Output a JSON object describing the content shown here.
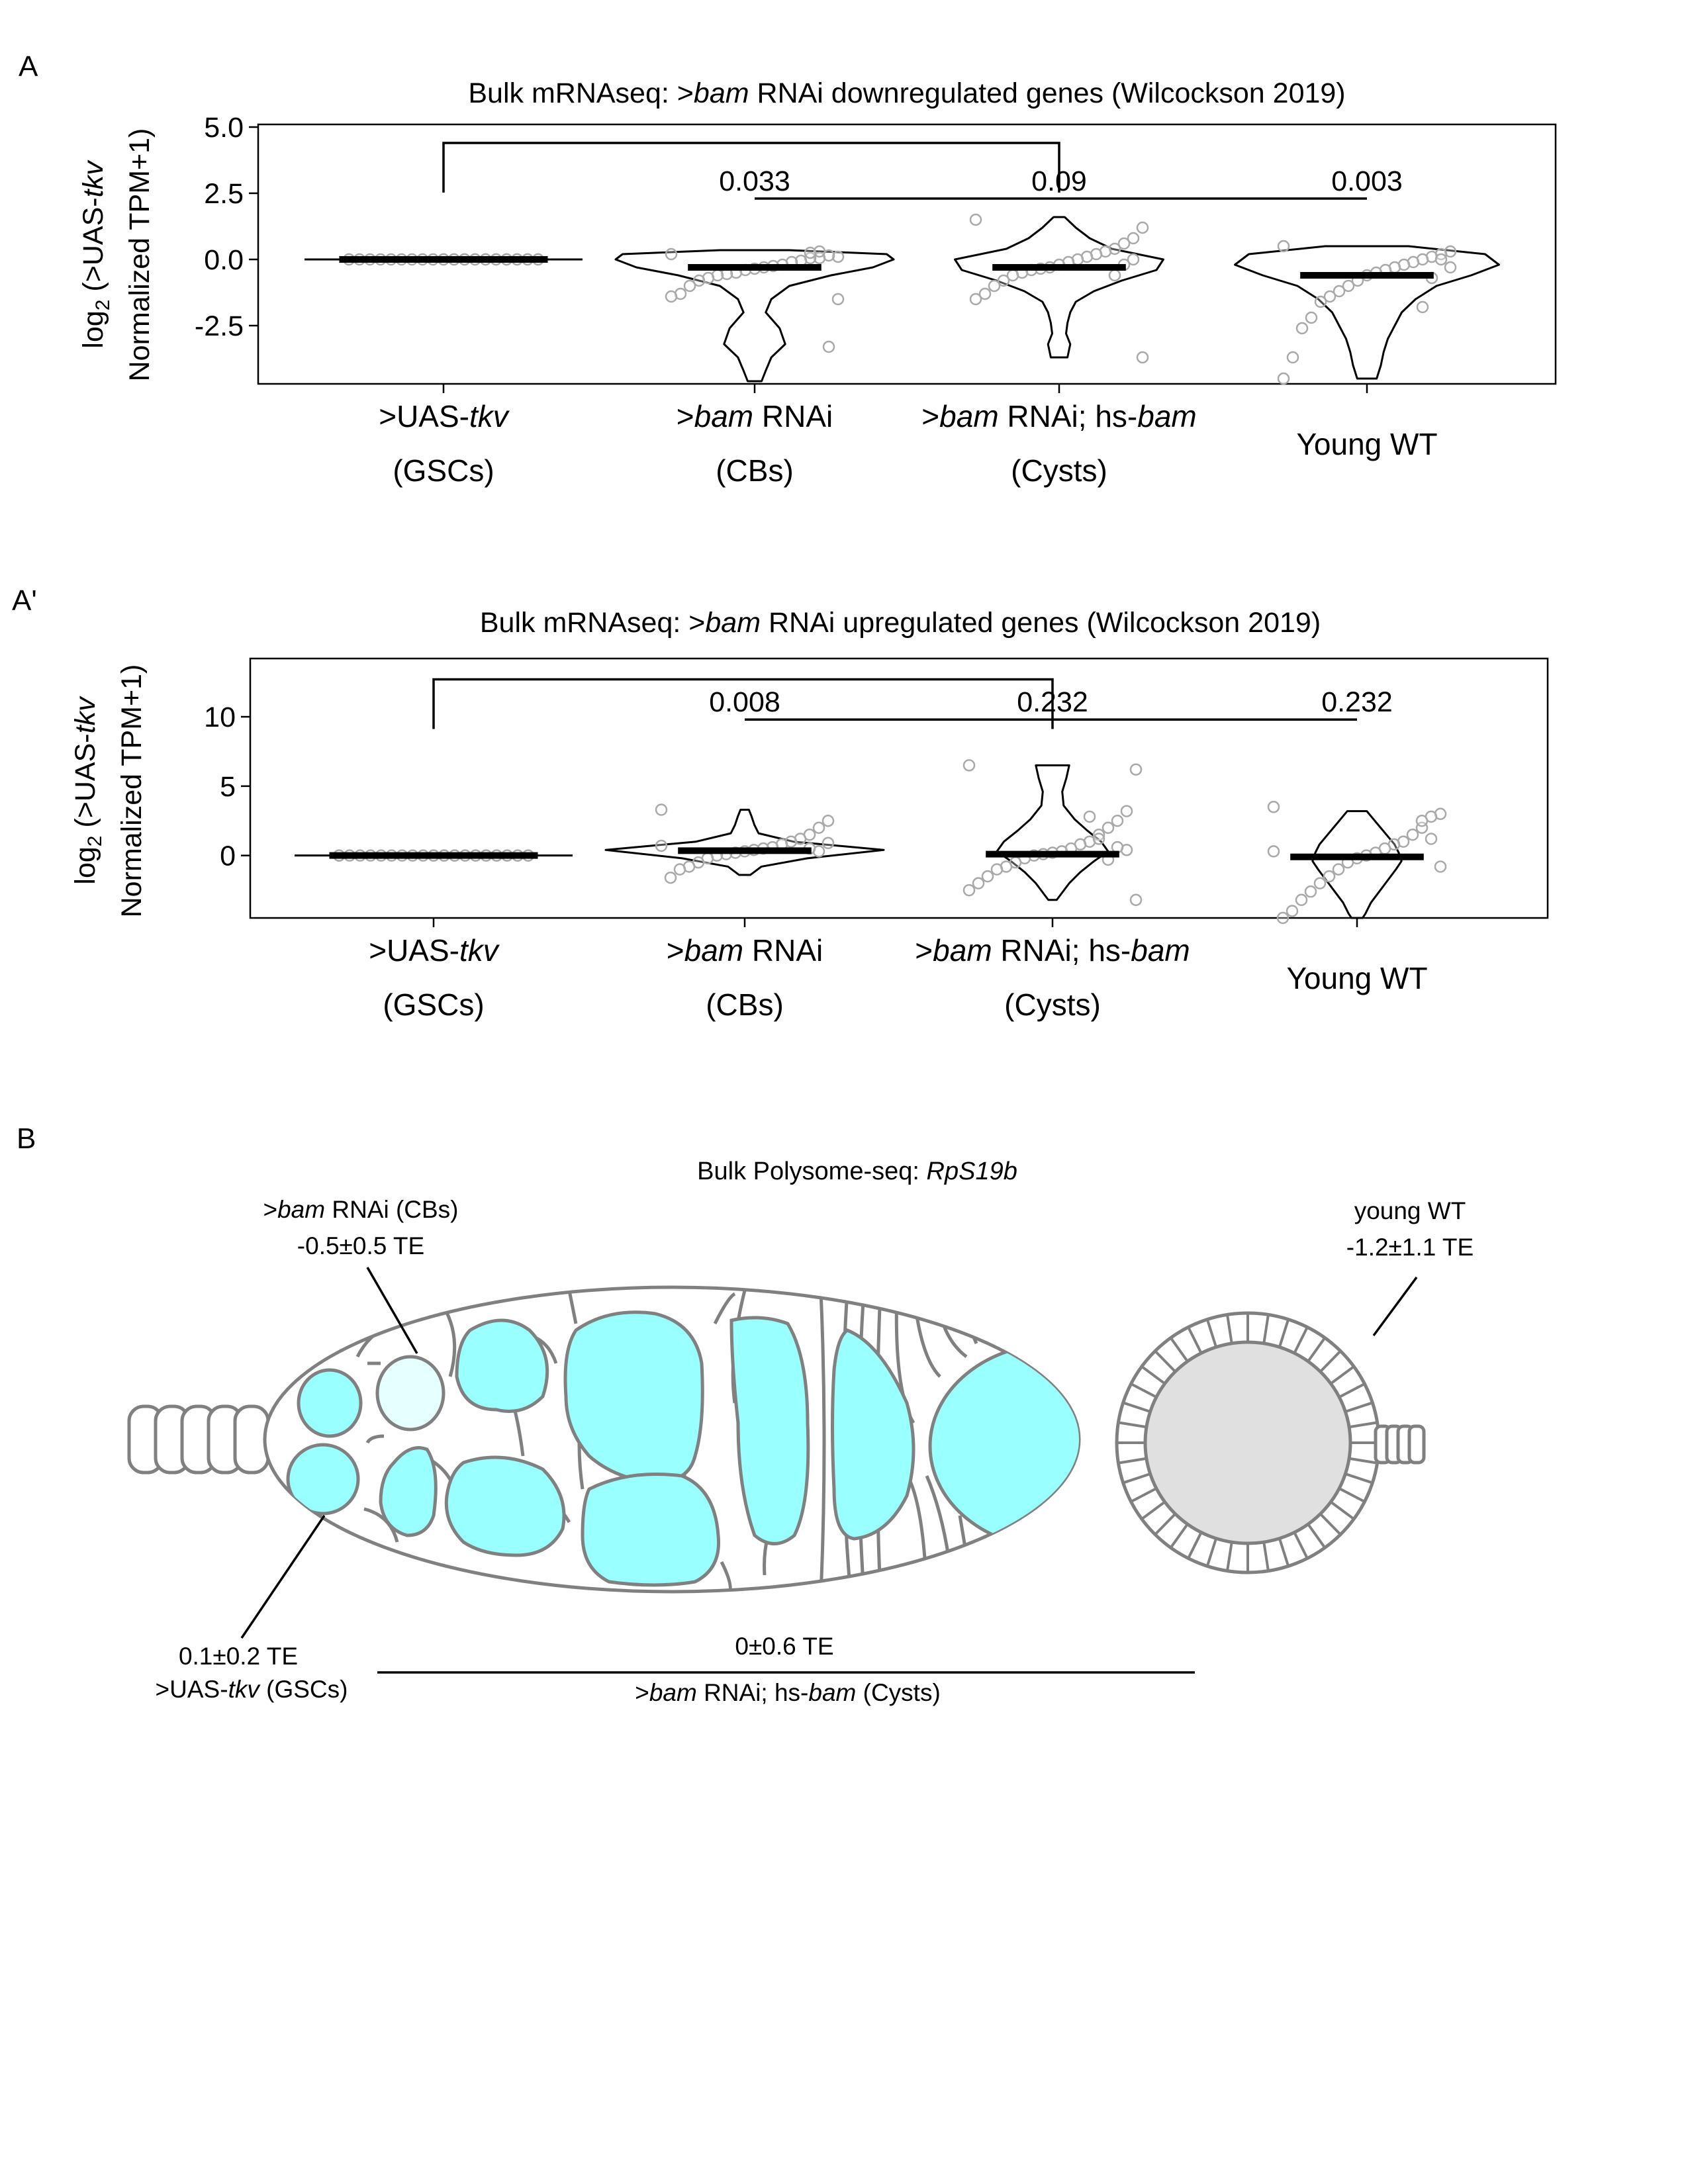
{
  "panels": {
    "a": {
      "letter": "A",
      "title_pre": "Bulk mRNAseq: >",
      "title_it": "bam",
      "title_post": " RNAi downregulated genes (Wilcockson 2019)",
      "ylabel_line1_pre": "log",
      "ylabel_line1_sub": "2",
      "ylabel_line1_mid": " (>UAS-",
      "ylabel_line1_it": "tkv",
      "ylabel_line2": "Normalized TPM+1)",
      "pvalues": [
        "0.033",
        "0.09",
        "0.003"
      ]
    },
    "ap": {
      "letter": "A'",
      "title_pre": "Bulk mRNAseq: >",
      "title_it": "bam",
      "title_post": " RNAi upregulated genes (Wilcockson 2019)",
      "ylabel_line1_pre": "log",
      "ylabel_line1_sub": "2",
      "ylabel_line1_mid": " (>UAS-",
      "ylabel_line1_it": "tkv",
      "ylabel_line2": "Normalized TPM+1)",
      "pvalues": [
        "0.008",
        "0.232",
        "0.232"
      ]
    },
    "b": {
      "letter": "B",
      "title_pre": "Bulk Polysome-seq: ",
      "title_it": "RpS19b",
      "cb_label_pre": ">",
      "cb_label_it": "bam",
      "cb_label_post": " RNAi (CBs)",
      "cb_te": "-0.5±0.5 TE",
      "wt_label": "young WT",
      "wt_te": "-1.2±1.1 TE",
      "gsc_te": "0.1±0.2 TE",
      "gsc_label_pre": ">UAS-",
      "gsc_label_it": "tkv",
      "gsc_label_post": " (GSCs)",
      "cyst_te": "0±0.6 TE",
      "cyst_label_pre": ">",
      "cyst_label_it1": "bam",
      "cyst_label_mid": " RNAi; hs-",
      "cyst_label_it2": "bam",
      "cyst_label_post": " (Cysts)",
      "colors": {
        "cyan": "#99ffff",
        "pale_cyan": "#e6ffff",
        "grey_fill": "#e0e0e0",
        "outline": "#808080"
      }
    }
  },
  "groups": [
    {
      "line1_pre": ">UAS-",
      "line1_it": "tkv",
      "line1_post": "",
      "line2": "(GSCs)"
    },
    {
      "line1_pre": ">",
      "line1_it": "bam",
      "line1_post": " RNAi",
      "line2": "(CBs)"
    },
    {
      "line1_pre": ">",
      "line1_it": "bam",
      "line1_post": " RNAi; hs-",
      "line1_it2": "bam",
      "line2": "(Cysts)"
    },
    {
      "line1_pre": "Young WT",
      "line1_it": "",
      "line1_post": "",
      "line2": ""
    }
  ],
  "chart_data": [
    {
      "type": "violin",
      "title": "Bulk mRNAseq: >bam RNAi downregulated genes (Wilcockson 2019)",
      "ylabel": "log2 (>UAS-tkv Normalized TPM+1)",
      "categories": [
        ">UAS-tkv (GSCs)",
        ">bam RNAi (CBs)",
        ">bam RNAi; hs-bam (Cysts)",
        "Young WT"
      ],
      "yticks": [
        5.0,
        2.5,
        0.0,
        -2.5
      ],
      "ytick_labels": [
        "5.0",
        "2.5",
        "0.0",
        "-2.5"
      ],
      "ylim": [
        -4.7,
        5.1
      ],
      "medians": [
        0.0,
        -0.3,
        -0.3,
        -0.6
      ],
      "points": [
        [
          0,
          0,
          0,
          0,
          0,
          0,
          0,
          0,
          0,
          0,
          0,
          0,
          0,
          0,
          0,
          0,
          0,
          0,
          0,
          0,
          0,
          0,
          0,
          0,
          0,
          0,
          0,
          0,
          0,
          0
        ],
        [
          0.2,
          0.1,
          0.15,
          0.05,
          0.05,
          -0.05,
          -0.1,
          -0.2,
          -0.25,
          -0.3,
          -0.35,
          -0.4,
          -0.5,
          -0.55,
          -0.6,
          -0.7,
          -0.8,
          -1.0,
          -1.3,
          -1.4,
          -1.5,
          -3.3,
          0.3,
          0.25
        ],
        [
          1.5,
          1.2,
          0.8,
          0.6,
          0.4,
          0.3,
          0.2,
          0.1,
          0.0,
          -0.1,
          -0.2,
          -0.3,
          -0.35,
          -0.4,
          -0.5,
          -0.6,
          -0.8,
          -1.0,
          -1.3,
          -1.5,
          -3.7,
          0.0,
          -0.2,
          -0.6
        ],
        [
          0.5,
          0.3,
          0.2,
          0.1,
          0.0,
          -0.1,
          -0.2,
          -0.3,
          -0.4,
          -0.5,
          -0.6,
          -0.8,
          -1.0,
          -1.2,
          -1.4,
          -1.6,
          -2.2,
          -2.6,
          -3.7,
          -4.5,
          -0.3,
          0.0,
          -0.7,
          -1.8
        ]
      ],
      "violins": [
        {
          "ys": [
            0.0
          ],
          "w": [
            1.0
          ]
        },
        {
          "ys": [
            0.35,
            0.2,
            0.0,
            -0.3,
            -0.6,
            -1.0,
            -1.5,
            -2.0,
            -2.6,
            -3.2,
            -3.7,
            -4.2,
            -4.6
          ],
          "w": [
            0.25,
            0.95,
            1.0,
            0.85,
            0.55,
            0.25,
            0.12,
            0.08,
            0.18,
            0.22,
            0.12,
            0.08,
            0.05
          ]
        },
        {
          "ys": [
            1.6,
            1.2,
            0.8,
            0.4,
            0.0,
            -0.4,
            -0.8,
            -1.2,
            -1.6,
            -2.0,
            -2.4,
            -2.8,
            -3.2,
            -3.7
          ],
          "w": [
            0.04,
            0.12,
            0.22,
            0.38,
            0.75,
            0.7,
            0.45,
            0.25,
            0.12,
            0.08,
            0.06,
            0.05,
            0.08,
            0.06
          ]
        },
        {
          "ys": [
            0.5,
            0.2,
            -0.2,
            -0.6,
            -1.0,
            -1.5,
            -2.0,
            -2.5,
            -3.0,
            -3.5,
            -4.0,
            -4.5
          ],
          "w": [
            0.3,
            0.85,
            0.95,
            0.75,
            0.5,
            0.35,
            0.25,
            0.2,
            0.15,
            0.12,
            0.1,
            0.07
          ]
        }
      ],
      "brackets": [
        {
          "from": 0,
          "to": 2,
          "level": 4.4
        },
        {
          "from": 1,
          "to": 3,
          "level": 2.3
        }
      ]
    },
    {
      "type": "violin",
      "title": "Bulk mRNAseq: >bam RNAi upregulated genes (Wilcockson 2019)",
      "ylabel": "log2 (>UAS-tkv Normalized TPM+1)",
      "categories": [
        ">UAS-tkv (GSCs)",
        ">bam RNAi (CBs)",
        ">bam RNAi; hs-bam (Cysts)",
        "Young WT"
      ],
      "yticks": [
        10,
        5,
        0
      ],
      "ytick_labels": [
        "10",
        "5",
        "0"
      ],
      "ylim": [
        -4.5,
        14.2
      ],
      "medians": [
        0.0,
        0.35,
        0.1,
        -0.1
      ],
      "points": [
        [
          0,
          0,
          0,
          0,
          0,
          0,
          0,
          0,
          0,
          0,
          0,
          0,
          0,
          0,
          0,
          0,
          0,
          0,
          0,
          0,
          0,
          0,
          0,
          0,
          0,
          0,
          0,
          0,
          0,
          0
        ],
        [
          3.3,
          2.5,
          2.0,
          1.5,
          1.2,
          1.0,
          0.8,
          0.6,
          0.5,
          0.4,
          0.3,
          0.2,
          0.1,
          0.0,
          -0.2,
          -0.5,
          -0.8,
          -1.0,
          -1.6,
          0.7,
          0.9,
          0.3,
          0.5
        ],
        [
          6.5,
          6.2,
          3.2,
          2.5,
          2.0,
          1.5,
          1.0,
          0.8,
          0.5,
          0.3,
          0.2,
          0.1,
          0.0,
          -0.2,
          -0.5,
          -0.8,
          -1.0,
          -1.5,
          -2.0,
          -2.5,
          -3.2,
          0.4,
          0.6,
          -0.3,
          1.2,
          2.8
        ],
        [
          3.5,
          3.0,
          2.8,
          2.0,
          1.5,
          1.0,
          0.8,
          0.5,
          0.2,
          0.0,
          -0.2,
          -0.5,
          -1.0,
          -1.5,
          -2.0,
          -2.6,
          -3.2,
          -4.0,
          -4.5,
          0.3,
          -0.8,
          1.2,
          2.5
        ]
      ],
      "violins": [
        {
          "ys": [
            0.0
          ],
          "w": [
            1.0
          ]
        },
        {
          "ys": [
            3.3,
            2.8,
            2.2,
            1.6,
            1.0,
            0.4,
            -0.2,
            -0.8,
            -1.4
          ],
          "w": [
            0.03,
            0.05,
            0.07,
            0.1,
            0.35,
            1.0,
            0.45,
            0.12,
            0.04
          ]
        },
        {
          "ys": [
            6.5,
            5.6,
            4.6,
            3.6,
            2.6,
            1.8,
            1.0,
            0.3,
            -0.4,
            -1.2,
            -2.0,
            -2.8,
            -3.2
          ],
          "w": [
            0.12,
            0.1,
            0.07,
            0.08,
            0.16,
            0.25,
            0.35,
            0.4,
            0.3,
            0.2,
            0.12,
            0.06,
            0.03
          ]
        },
        {
          "ys": [
            3.2,
            2.6,
            2.0,
            1.4,
            0.8,
            0.2,
            -0.4,
            -1.0,
            -1.8,
            -2.6,
            -3.4,
            -4.2,
            -4.5
          ],
          "w": [
            0.07,
            0.12,
            0.17,
            0.22,
            0.27,
            0.3,
            0.32,
            0.28,
            0.22,
            0.16,
            0.1,
            0.06,
            0.04
          ]
        }
      ],
      "brackets": [
        {
          "from": 0,
          "to": 2,
          "level": 12.7
        },
        {
          "from": 1,
          "to": 3,
          "level": 9.8
        }
      ]
    }
  ]
}
